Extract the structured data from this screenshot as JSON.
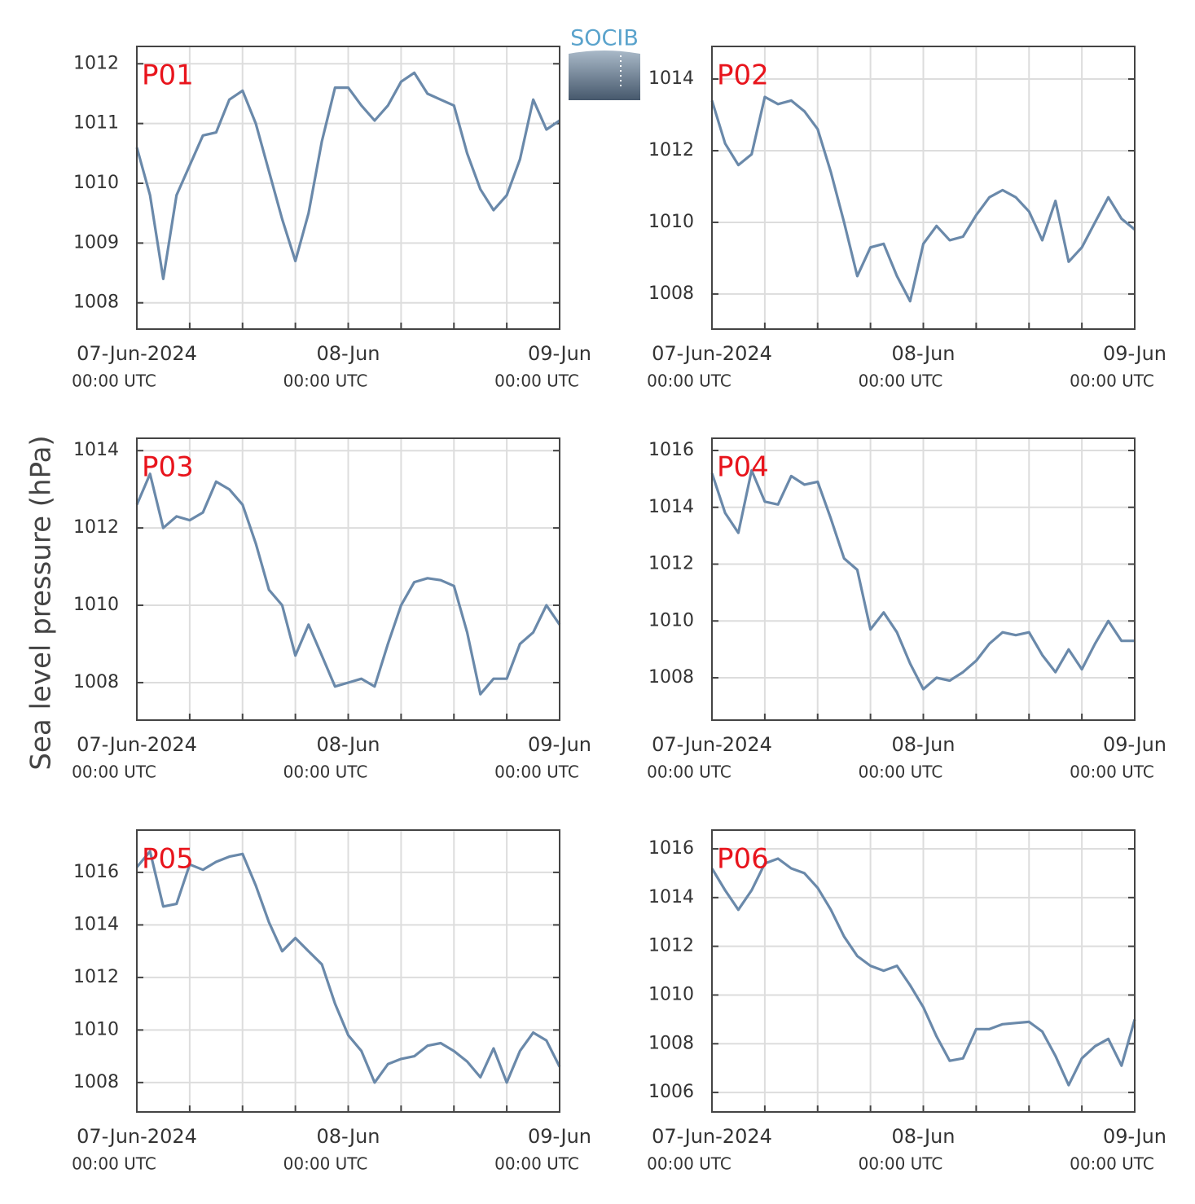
{
  "logo": "SOCIB",
  "ylabel": "Sea level pressure (hPa)",
  "chart_data": [
    {
      "type": "line",
      "title": "P01",
      "x": [
        "2024-06-07T00:00",
        "2024-06-07T01:30",
        "2024-06-07T03:00",
        "2024-06-07T04:30",
        "2024-06-07T06:00",
        "2024-06-07T07:30",
        "2024-06-07T09:00",
        "2024-06-07T10:30",
        "2024-06-07T12:00",
        "2024-06-07T13:30",
        "2024-06-07T15:00",
        "2024-06-07T16:30",
        "2024-06-07T18:00",
        "2024-06-07T19:30",
        "2024-06-07T21:00",
        "2024-06-07T22:30",
        "2024-06-08T00:00",
        "2024-06-08T01:30",
        "2024-06-08T03:00",
        "2024-06-08T04:30",
        "2024-06-08T06:00",
        "2024-06-08T07:30",
        "2024-06-08T09:00",
        "2024-06-08T10:30",
        "2024-06-08T12:00",
        "2024-06-08T13:30",
        "2024-06-08T15:00",
        "2024-06-08T16:30",
        "2024-06-08T18:00",
        "2024-06-08T19:30",
        "2024-06-08T21:00",
        "2024-06-08T22:30",
        "2024-06-09T00:00"
      ],
      "values": [
        1010.6,
        1009.8,
        1008.4,
        1009.8,
        1010.3,
        1010.8,
        1010.85,
        1011.4,
        1011.55,
        1011.0,
        1010.2,
        1009.4,
        1008.7,
        1009.5,
        1010.7,
        1011.6,
        1011.6,
        1011.3,
        1011.05,
        1011.3,
        1011.7,
        1011.85,
        1011.5,
        1011.4,
        1011.3,
        1010.5,
        1009.9,
        1009.55,
        1009.8,
        1010.4,
        1011.4,
        1010.9,
        1011.05
      ],
      "color": "#6a89aa",
      "xlim": [
        "2024-06-07T00:00",
        "2024-06-09T00:00"
      ],
      "xticks": [
        {
          "value": "2024-06-07T00:00",
          "label": "07-Jun-2024",
          "sublabel": "00:00 UTC"
        },
        {
          "value": "2024-06-08T00:00",
          "label": "08-Jun",
          "sublabel": "00:00 UTC"
        },
        {
          "value": "2024-06-09T00:00",
          "label": "09-Jun",
          "sublabel": "00:00 UTC"
        }
      ],
      "xminor": [
        "2024-06-07T06:00",
        "2024-06-07T12:00",
        "2024-06-07T18:00",
        "2024-06-08T06:00",
        "2024-06-08T12:00",
        "2024-06-08T18:00"
      ],
      "ylim": [
        1007.56,
        1012.29
      ],
      "yticks": [
        1008,
        1009,
        1010,
        1011,
        1012
      ],
      "grid": true
    },
    {
      "type": "line",
      "title": "P02",
      "x": [
        "2024-06-07T00:00",
        "2024-06-07T01:30",
        "2024-06-07T03:00",
        "2024-06-07T04:30",
        "2024-06-07T06:00",
        "2024-06-07T07:30",
        "2024-06-07T09:00",
        "2024-06-07T10:30",
        "2024-06-07T12:00",
        "2024-06-07T13:30",
        "2024-06-07T15:00",
        "2024-06-07T16:30",
        "2024-06-07T18:00",
        "2024-06-07T19:30",
        "2024-06-07T21:00",
        "2024-06-07T22:30",
        "2024-06-08T00:00",
        "2024-06-08T01:30",
        "2024-06-08T03:00",
        "2024-06-08T04:30",
        "2024-06-08T06:00",
        "2024-06-08T07:30",
        "2024-06-08T09:00",
        "2024-06-08T10:30",
        "2024-06-08T12:00",
        "2024-06-08T13:30",
        "2024-06-08T15:00",
        "2024-06-08T16:30",
        "2024-06-08T18:00",
        "2024-06-08T19:30",
        "2024-06-08T21:00",
        "2024-06-08T22:30",
        "2024-06-09T00:00"
      ],
      "values": [
        1013.4,
        1012.2,
        1011.6,
        1011.9,
        1013.5,
        1013.3,
        1013.4,
        1013.1,
        1012.6,
        1011.4,
        1010.0,
        1008.5,
        1009.3,
        1009.4,
        1008.5,
        1007.8,
        1009.4,
        1009.9,
        1009.5,
        1009.6,
        1010.2,
        1010.7,
        1010.9,
        1010.7,
        1010.3,
        1009.5,
        1010.6,
        1008.9,
        1009.3,
        1010.0,
        1010.7,
        1010.1,
        1009.8
      ],
      "color": "#6a89aa",
      "xlim": [
        "2024-06-07T00:00",
        "2024-06-09T00:00"
      ],
      "xticks": [
        {
          "value": "2024-06-07T00:00",
          "label": "07-Jun-2024",
          "sublabel": "00:00 UTC"
        },
        {
          "value": "2024-06-08T00:00",
          "label": "08-Jun",
          "sublabel": "00:00 UTC"
        },
        {
          "value": "2024-06-09T00:00",
          "label": "09-Jun",
          "sublabel": "00:00 UTC"
        }
      ],
      "xminor": [
        "2024-06-07T06:00",
        "2024-06-07T12:00",
        "2024-06-07T18:00",
        "2024-06-08T06:00",
        "2024-06-08T12:00",
        "2024-06-08T18:00"
      ],
      "ylim": [
        1007.02,
        1014.91
      ],
      "yticks": [
        1008,
        1010,
        1012,
        1014
      ],
      "grid": true
    },
    {
      "type": "line",
      "title": "P03",
      "x": [
        "2024-06-07T00:00",
        "2024-06-07T01:30",
        "2024-06-07T03:00",
        "2024-06-07T04:30",
        "2024-06-07T06:00",
        "2024-06-07T07:30",
        "2024-06-07T09:00",
        "2024-06-07T10:30",
        "2024-06-07T12:00",
        "2024-06-07T13:30",
        "2024-06-07T15:00",
        "2024-06-07T16:30",
        "2024-06-07T18:00",
        "2024-06-07T19:30",
        "2024-06-07T21:00",
        "2024-06-07T22:30",
        "2024-06-08T00:00",
        "2024-06-08T01:30",
        "2024-06-08T03:00",
        "2024-06-08T04:30",
        "2024-06-08T06:00",
        "2024-06-08T07:30",
        "2024-06-08T09:00",
        "2024-06-08T10:30",
        "2024-06-08T12:00",
        "2024-06-08T13:30",
        "2024-06-08T15:00",
        "2024-06-08T16:30",
        "2024-06-08T18:00",
        "2024-06-08T19:30",
        "2024-06-08T21:00",
        "2024-06-08T22:30",
        "2024-06-09T00:00"
      ],
      "values": [
        1012.6,
        1013.4,
        1012.0,
        1012.3,
        1012.2,
        1012.4,
        1013.2,
        1013.0,
        1012.6,
        1011.6,
        1010.4,
        1010.0,
        1008.7,
        1009.5,
        1008.7,
        1007.9,
        1008.0,
        1008.1,
        1007.9,
        1009.0,
        1010.0,
        1010.6,
        1010.7,
        1010.65,
        1010.5,
        1009.3,
        1007.7,
        1008.1,
        1008.1,
        1009.0,
        1009.3,
        1010.0,
        1009.5
      ],
      "color": "#6a89aa",
      "xlim": [
        "2024-06-07T00:00",
        "2024-06-09T00:00"
      ],
      "xticks": [
        {
          "value": "2024-06-07T00:00",
          "label": "07-Jun-2024",
          "sublabel": "00:00 UTC"
        },
        {
          "value": "2024-06-08T00:00",
          "label": "08-Jun",
          "sublabel": "00:00 UTC"
        },
        {
          "value": "2024-06-09T00:00",
          "label": "09-Jun",
          "sublabel": "00:00 UTC"
        }
      ],
      "xminor": [
        "2024-06-07T06:00",
        "2024-06-07T12:00",
        "2024-06-07T18:00",
        "2024-06-08T06:00",
        "2024-06-08T12:00",
        "2024-06-08T18:00"
      ],
      "ylim": [
        1007.03,
        1014.32
      ],
      "yticks": [
        1008,
        1010,
        1012,
        1014
      ],
      "grid": true
    },
    {
      "type": "line",
      "title": "P04",
      "x": [
        "2024-06-07T00:00",
        "2024-06-07T01:30",
        "2024-06-07T03:00",
        "2024-06-07T04:30",
        "2024-06-07T06:00",
        "2024-06-07T07:30",
        "2024-06-07T09:00",
        "2024-06-07T10:30",
        "2024-06-07T12:00",
        "2024-06-07T13:30",
        "2024-06-07T15:00",
        "2024-06-07T16:30",
        "2024-06-07T18:00",
        "2024-06-07T19:30",
        "2024-06-07T21:00",
        "2024-06-07T22:30",
        "2024-06-08T00:00",
        "2024-06-08T01:30",
        "2024-06-08T03:00",
        "2024-06-08T04:30",
        "2024-06-08T06:00",
        "2024-06-08T07:30",
        "2024-06-08T09:00",
        "2024-06-08T10:30",
        "2024-06-08T12:00",
        "2024-06-08T13:30",
        "2024-06-08T15:00",
        "2024-06-08T16:30",
        "2024-06-08T18:00",
        "2024-06-08T19:30",
        "2024-06-08T21:00",
        "2024-06-08T22:30",
        "2024-06-09T00:00"
      ],
      "values": [
        1015.2,
        1013.8,
        1013.1,
        1015.3,
        1014.2,
        1014.1,
        1015.1,
        1014.8,
        1014.9,
        1013.6,
        1012.2,
        1011.8,
        1009.7,
        1010.3,
        1009.6,
        1008.5,
        1007.6,
        1008.0,
        1007.9,
        1008.2,
        1008.6,
        1009.2,
        1009.6,
        1009.5,
        1009.6,
        1008.8,
        1008.2,
        1009.0,
        1008.3,
        1009.2,
        1010.0,
        1009.3,
        1009.3
      ],
      "color": "#6a89aa",
      "xlim": [
        "2024-06-07T00:00",
        "2024-06-09T00:00"
      ],
      "xticks": [
        {
          "value": "2024-06-07T00:00",
          "label": "07-Jun-2024",
          "sublabel": "00:00 UTC"
        },
        {
          "value": "2024-06-08T00:00",
          "label": "08-Jun",
          "sublabel": "00:00 UTC"
        },
        {
          "value": "2024-06-09T00:00",
          "label": "09-Jun",
          "sublabel": "00:00 UTC"
        }
      ],
      "xminor": [
        "2024-06-07T06:00",
        "2024-06-07T12:00",
        "2024-06-07T18:00",
        "2024-06-08T06:00",
        "2024-06-08T12:00",
        "2024-06-08T18:00"
      ],
      "ylim": [
        1006.51,
        1016.43
      ],
      "yticks": [
        1008,
        1010,
        1012,
        1014,
        1016
      ],
      "grid": true
    },
    {
      "type": "line",
      "title": "P05",
      "x": [
        "2024-06-07T00:00",
        "2024-06-07T01:30",
        "2024-06-07T03:00",
        "2024-06-07T04:30",
        "2024-06-07T06:00",
        "2024-06-07T07:30",
        "2024-06-07T09:00",
        "2024-06-07T10:30",
        "2024-06-07T12:00",
        "2024-06-07T13:30",
        "2024-06-07T15:00",
        "2024-06-07T16:30",
        "2024-06-07T18:00",
        "2024-06-07T19:30",
        "2024-06-07T21:00",
        "2024-06-07T22:30",
        "2024-06-08T00:00",
        "2024-06-08T01:30",
        "2024-06-08T03:00",
        "2024-06-08T04:30",
        "2024-06-08T06:00",
        "2024-06-08T07:30",
        "2024-06-08T09:00",
        "2024-06-08T10:30",
        "2024-06-08T12:00",
        "2024-06-08T13:30",
        "2024-06-08T15:00",
        "2024-06-08T16:30",
        "2024-06-08T18:00",
        "2024-06-08T19:30",
        "2024-06-08T21:00",
        "2024-06-08T22:30",
        "2024-06-09T00:00"
      ],
      "values": [
        1016.2,
        1016.8,
        1014.7,
        1014.8,
        1016.3,
        1016.1,
        1016.4,
        1016.6,
        1016.7,
        1015.5,
        1014.1,
        1013.0,
        1013.5,
        1013.0,
        1012.5,
        1011.0,
        1009.8,
        1009.2,
        1008.0,
        1008.7,
        1008.9,
        1009.0,
        1009.4,
        1009.5,
        1009.2,
        1008.8,
        1008.2,
        1009.3,
        1008.0,
        1009.2,
        1009.9,
        1009.6,
        1008.6
      ],
      "color": "#6a89aa",
      "xlim": [
        "2024-06-07T00:00",
        "2024-06-09T00:00"
      ],
      "xticks": [
        {
          "value": "2024-06-07T00:00",
          "label": "07-Jun-2024",
          "sublabel": "00:00 UTC"
        },
        {
          "value": "2024-06-08T00:00",
          "label": "08-Jun",
          "sublabel": "00:00 UTC"
        },
        {
          "value": "2024-06-09T00:00",
          "label": "09-Jun",
          "sublabel": "00:00 UTC"
        }
      ],
      "xminor": [
        "2024-06-07T06:00",
        "2024-06-07T12:00",
        "2024-06-07T18:00",
        "2024-06-08T06:00",
        "2024-06-08T12:00",
        "2024-06-08T18:00"
      ],
      "ylim": [
        1006.88,
        1017.61
      ],
      "yticks": [
        1008,
        1010,
        1012,
        1014,
        1016
      ],
      "grid": true
    },
    {
      "type": "line",
      "title": "P06",
      "x": [
        "2024-06-07T00:00",
        "2024-06-07T01:30",
        "2024-06-07T03:00",
        "2024-06-07T04:30",
        "2024-06-07T06:00",
        "2024-06-07T07:30",
        "2024-06-07T09:00",
        "2024-06-07T10:30",
        "2024-06-07T12:00",
        "2024-06-07T13:30",
        "2024-06-07T15:00",
        "2024-06-07T16:30",
        "2024-06-07T18:00",
        "2024-06-07T19:30",
        "2024-06-07T21:00",
        "2024-06-07T22:30",
        "2024-06-08T00:00",
        "2024-06-08T01:30",
        "2024-06-08T03:00",
        "2024-06-08T04:30",
        "2024-06-08T06:00",
        "2024-06-08T07:30",
        "2024-06-08T09:00",
        "2024-06-08T10:30",
        "2024-06-08T12:00",
        "2024-06-08T13:30",
        "2024-06-08T15:00",
        "2024-06-08T16:30",
        "2024-06-08T18:00",
        "2024-06-08T19:30",
        "2024-06-08T21:00",
        "2024-06-08T22:30",
        "2024-06-09T00:00"
      ],
      "values": [
        1015.2,
        1014.3,
        1013.5,
        1014.3,
        1015.4,
        1015.6,
        1015.2,
        1015.0,
        1014.4,
        1013.5,
        1012.4,
        1011.6,
        1011.2,
        1011.0,
        1011.2,
        1010.4,
        1009.5,
        1008.3,
        1007.3,
        1007.4,
        1008.6,
        1008.6,
        1008.8,
        1008.85,
        1008.9,
        1008.5,
        1007.5,
        1006.3,
        1007.4,
        1007.9,
        1008.2,
        1007.1,
        1009.0
      ],
      "color": "#6a89aa",
      "xlim": [
        "2024-06-07T00:00",
        "2024-06-09T00:00"
      ],
      "xticks": [
        {
          "value": "2024-06-07T00:00",
          "label": "07-Jun-2024",
          "sublabel": "00:00 UTC"
        },
        {
          "value": "2024-06-08T00:00",
          "label": "08-Jun",
          "sublabel": "00:00 UTC"
        },
        {
          "value": "2024-06-09T00:00",
          "label": "09-Jun",
          "sublabel": "00:00 UTC"
        }
      ],
      "xminor": [
        "2024-06-07T06:00",
        "2024-06-07T12:00",
        "2024-06-07T18:00",
        "2024-06-08T06:00",
        "2024-06-08T12:00",
        "2024-06-08T18:00"
      ],
      "ylim": [
        1005.2,
        1016.77
      ],
      "yticks": [
        1006,
        1008,
        1010,
        1012,
        1014,
        1016
      ],
      "grid": true
    }
  ]
}
